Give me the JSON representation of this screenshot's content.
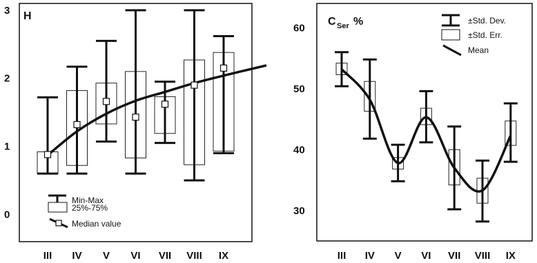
{
  "chart_data": [
    {
      "type": "box",
      "title": "H",
      "categories": [
        "III",
        "IV",
        "V",
        "VI",
        "VII",
        "VIII",
        "IX"
      ],
      "y_ticks": [
        "0",
        "1",
        "2",
        "3"
      ],
      "ylim": [
        -0.4,
        3.1
      ],
      "median": [
        0.88,
        1.32,
        1.66,
        1.43,
        1.62,
        1.9,
        2.15
      ],
      "q1": [
        0.6,
        0.72,
        1.33,
        0.83,
        1.19,
        0.73,
        0.93
      ],
      "q3": [
        0.92,
        1.82,
        1.93,
        2.1,
        1.73,
        2.27,
        2.38
      ],
      "min": [
        0.6,
        0.6,
        1.07,
        0.6,
        1.05,
        0.5,
        0.9
      ],
      "max": [
        1.72,
        2.17,
        2.55,
        3.0,
        1.95,
        3.0,
        2.62
      ],
      "trend": [
        0.87,
        1.22,
        1.48,
        1.67,
        1.8,
        1.93,
        2.04
      ],
      "grid": false,
      "legend": [
        "Min-Max",
        "25%-75%",
        "Median value"
      ],
      "legend_position": "bottom-left"
    },
    {
      "type": "errorbar",
      "title_main": "C",
      "title_sub": "Ser",
      "title_suffix": "%",
      "categories": [
        "III",
        "IV",
        "V",
        "VI",
        "VII",
        "VIII",
        "IX"
      ],
      "y_ticks": [
        "30",
        "40",
        "50",
        "60"
      ],
      "ylim": [
        25,
        64
      ],
      "mean": [
        53.2,
        48.2,
        37.8,
        45.3,
        37.0,
        33.3,
        42.3
      ],
      "std_lower": [
        50.4,
        41.8,
        34.8,
        41.2,
        30.2,
        28.2,
        38.0
      ],
      "std_upper": [
        56.0,
        54.8,
        40.8,
        49.6,
        43.8,
        38.2,
        47.6
      ],
      "se_lower": [
        52.3,
        46.3,
        36.8,
        44.1,
        34.2,
        31.2,
        40.7
      ],
      "se_upper": [
        54.2,
        51.2,
        38.7,
        46.8,
        40.0,
        35.3,
        44.7
      ],
      "grid": false,
      "legend": [
        "±Std. Dev.",
        "±Std. Err.",
        "Mean"
      ],
      "legend_position": "top-right"
    }
  ]
}
